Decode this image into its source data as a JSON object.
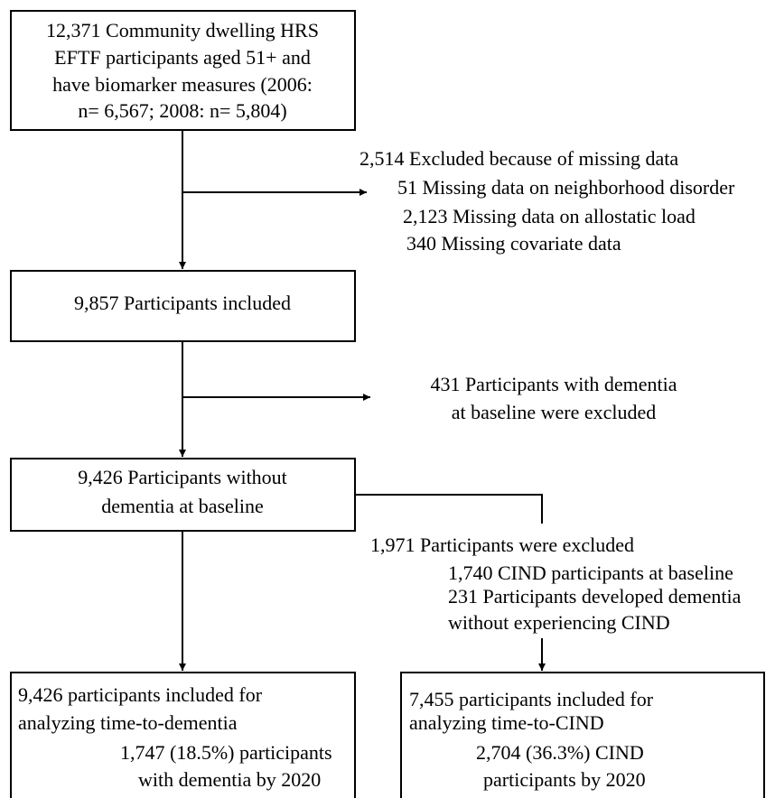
{
  "boxes": [
    {
      "lines": [
        "12,371 Community dwelling HRS",
        "EFTF participants aged 51+ and",
        "have biomarker measures (2006:",
        "n= 6,567; 2008: n= 5,804)"
      ]
    },
    {
      "lines": [
        "9,857 Participants included"
      ]
    },
    {
      "lines": [
        "9,426 Participants without",
        "dementia at baseline"
      ]
    },
    {
      "lines": [
        "9,426 participants included for",
        "analyzing time-to-dementia",
        "1,747 (18.5%) participants",
        "with dementia by 2020"
      ]
    },
    {
      "lines": [
        "7,455 participants included for",
        "analyzing time-to-CIND",
        "2,704 (36.3%) CIND",
        "participants by 2020"
      ]
    }
  ],
  "exclusions": [
    {
      "lines": [
        "2,514 Excluded because of missing data",
        "51 Missing data on neighborhood disorder",
        "2,123 Missing data on allostatic load",
        "340 Missing covariate data"
      ]
    },
    {
      "lines": [
        "431 Participants with dementia",
        "at baseline were excluded"
      ]
    },
    {
      "lines": [
        "1,971 Participants were excluded",
        "1,740 CIND participants at baseline",
        "231 Participants developed dementia",
        "without experiencing CIND"
      ]
    }
  ]
}
